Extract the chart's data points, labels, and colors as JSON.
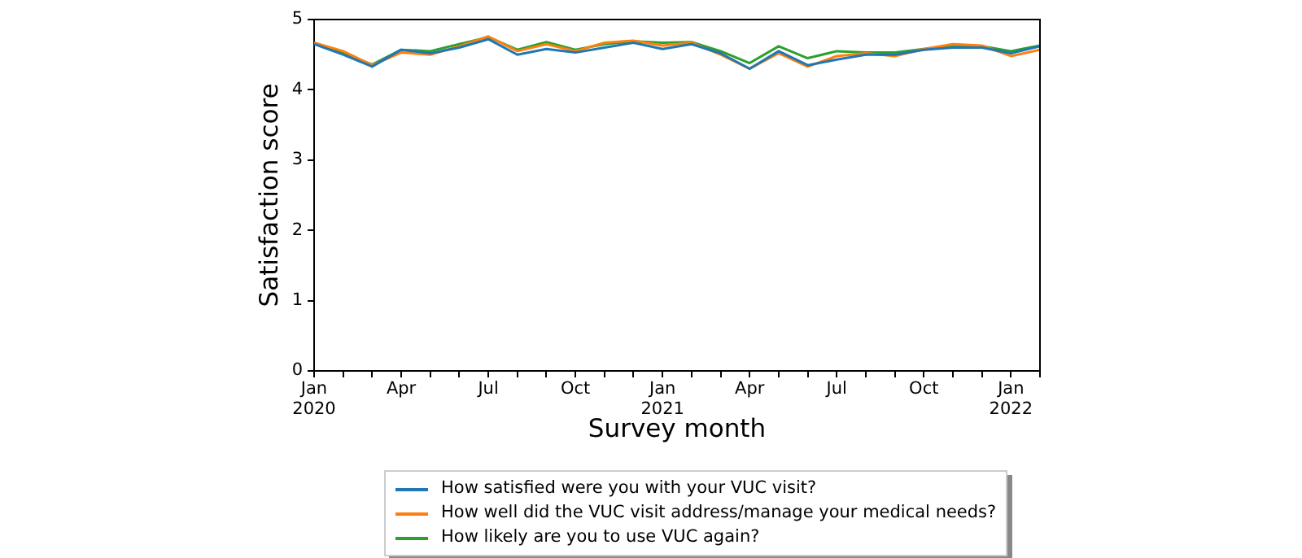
{
  "chart_data": {
    "type": "line",
    "xlabel": "Survey month",
    "ylabel": "Satisfaction score",
    "x": [
      "2020-01",
      "2020-02",
      "2020-03",
      "2020-04",
      "2020-05",
      "2020-06",
      "2020-07",
      "2020-08",
      "2020-09",
      "2020-10",
      "2020-11",
      "2020-12",
      "2021-01",
      "2021-02",
      "2021-03",
      "2021-04",
      "2021-05",
      "2021-06",
      "2021-07",
      "2021-08",
      "2021-09",
      "2021-10",
      "2021-11",
      "2021-12",
      "2022-01",
      "2022-02"
    ],
    "series": [
      {
        "name": "How satisfied were you with your VUC visit?",
        "color": "#1f77b4",
        "values": [
          4.65,
          4.5,
          4.33,
          4.57,
          4.52,
          4.6,
          4.72,
          4.5,
          4.58,
          4.53,
          4.6,
          4.67,
          4.58,
          4.65,
          4.52,
          4.3,
          4.55,
          4.35,
          4.43,
          4.5,
          4.5,
          4.57,
          4.6,
          4.6,
          4.52,
          4.62
        ]
      },
      {
        "name": "How well did the VUC visit address/manage your medical needs?",
        "color": "#ff7f0e",
        "values": [
          4.67,
          4.55,
          4.35,
          4.53,
          4.5,
          4.62,
          4.76,
          4.55,
          4.65,
          4.55,
          4.67,
          4.7,
          4.63,
          4.67,
          4.5,
          4.3,
          4.52,
          4.33,
          4.48,
          4.52,
          4.48,
          4.58,
          4.65,
          4.63,
          4.48,
          4.57
        ]
      },
      {
        "name": "How likely are you to use VUC again?",
        "color": "#2ca02c",
        "values": [
          4.67,
          4.52,
          4.36,
          4.57,
          4.55,
          4.65,
          4.75,
          4.57,
          4.68,
          4.57,
          4.65,
          4.69,
          4.67,
          4.68,
          4.55,
          4.38,
          4.62,
          4.45,
          4.55,
          4.53,
          4.53,
          4.58,
          4.62,
          4.62,
          4.55,
          4.63
        ]
      }
    ],
    "xlim": [
      "2020-01",
      "2022-02"
    ],
    "xticks": [
      {
        "value": "2020-01",
        "label": "Jan\n2020"
      },
      {
        "value": "2020-02",
        "label": null
      },
      {
        "value": "2020-03",
        "label": null
      },
      {
        "value": "2020-04",
        "label": "Apr"
      },
      {
        "value": "2020-05",
        "label": null
      },
      {
        "value": "2020-06",
        "label": null
      },
      {
        "value": "2020-07",
        "label": "Jul"
      },
      {
        "value": "2020-08",
        "label": null
      },
      {
        "value": "2020-09",
        "label": null
      },
      {
        "value": "2020-10",
        "label": "Oct"
      },
      {
        "value": "2020-11",
        "label": null
      },
      {
        "value": "2020-12",
        "label": null
      },
      {
        "value": "2021-01",
        "label": "Jan\n2021"
      },
      {
        "value": "2021-02",
        "label": null
      },
      {
        "value": "2021-03",
        "label": null
      },
      {
        "value": "2021-04",
        "label": "Apr"
      },
      {
        "value": "2021-05",
        "label": null
      },
      {
        "value": "2021-06",
        "label": null
      },
      {
        "value": "2021-07",
        "label": "Jul"
      },
      {
        "value": "2021-08",
        "label": null
      },
      {
        "value": "2021-09",
        "label": null
      },
      {
        "value": "2021-10",
        "label": "Oct"
      },
      {
        "value": "2021-11",
        "label": null
      },
      {
        "value": "2021-12",
        "label": null
      },
      {
        "value": "2022-01",
        "label": "Jan\n2022"
      },
      {
        "value": "2022-02",
        "label": null
      }
    ],
    "ylim": [
      0,
      5
    ],
    "yticks": [
      0,
      1,
      2,
      3,
      4,
      5
    ],
    "grid": false,
    "legend": "bottom",
    "marker": "none",
    "line_style": "solid"
  }
}
